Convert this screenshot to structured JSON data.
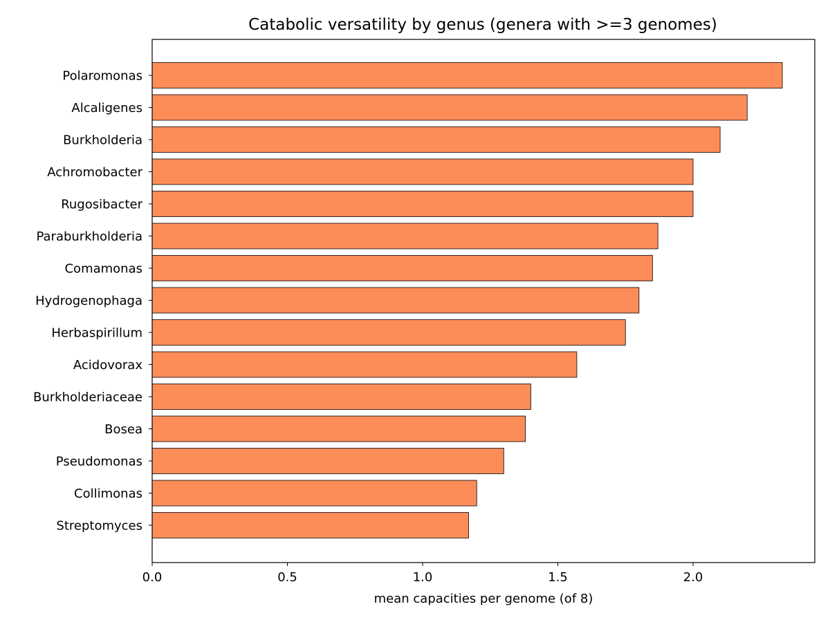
{
  "chart_data": {
    "type": "bar",
    "orientation": "horizontal",
    "title": "Catabolic versatility by genus (genera with >=3 genomes)",
    "xlabel": "mean capacities per genome (of 8)",
    "ylabel": "",
    "xlim": [
      0,
      2.45
    ],
    "xticks": [
      0.0,
      0.5,
      1.0,
      1.5,
      2.0
    ],
    "xtick_labels": [
      "0.0",
      "0.5",
      "1.0",
      "1.5",
      "2.0"
    ],
    "grid": false,
    "bar_color": "#fc8d59",
    "bar_edge_color": "#000000",
    "categories": [
      "Polaromonas",
      "Alcaligenes",
      "Burkholderia",
      "Achromobacter",
      "Rugosibacter",
      "Paraburkholderia",
      "Comamonas",
      "Hydrogenophaga",
      "Herbaspirillum",
      "Acidovorax",
      "Burkholderiaceae",
      "Bosea",
      "Pseudomonas",
      "Collimonas",
      "Streptomyces"
    ],
    "values": [
      2.33,
      2.2,
      2.1,
      2.0,
      2.0,
      1.87,
      1.85,
      1.8,
      1.75,
      1.57,
      1.4,
      1.38,
      1.3,
      1.2,
      1.17
    ]
  }
}
